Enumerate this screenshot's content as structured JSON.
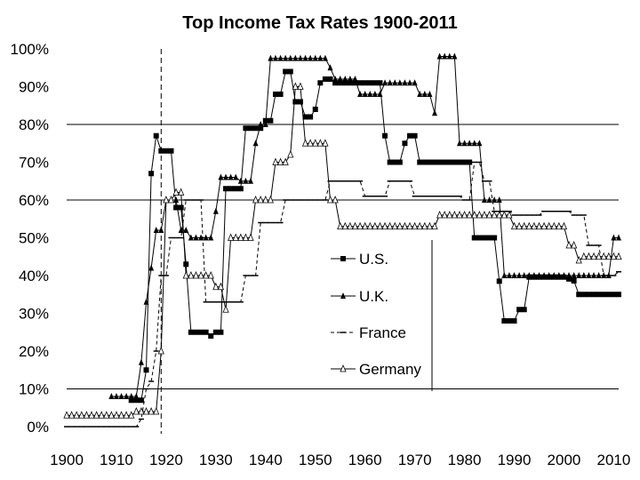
{
  "chart_data": {
    "type": "line",
    "title": "Top Income Tax Rates 1900-2011",
    "xlabel": "",
    "ylabel": "",
    "xlim": [
      1900,
      2011
    ],
    "ylim": [
      0,
      100
    ],
    "x_ticks": [
      "1900",
      "1910",
      "1920",
      "1930",
      "1940",
      "1950",
      "1960",
      "1970",
      "1980",
      "1990",
      "2000",
      "2010"
    ],
    "y_ticks": [
      "0%",
      "10%",
      "20%",
      "30%",
      "40%",
      "50%",
      "60%",
      "70%",
      "80%",
      "90%",
      "100%"
    ],
    "gridlines_y": [
      10,
      60,
      80
    ],
    "reference_line_x": 1919,
    "legend_position": "center",
    "series": [
      {
        "name": "U.S.",
        "marker": "square-filled",
        "points": [
          [
            1913,
            7
          ],
          [
            1916,
            15
          ],
          [
            1917,
            67
          ],
          [
            1918,
            77
          ],
          [
            1919,
            73
          ],
          [
            1921,
            73
          ],
          [
            1922,
            58
          ],
          [
            1924,
            43
          ],
          [
            1925,
            25
          ],
          [
            1929,
            24
          ],
          [
            1930,
            25
          ],
          [
            1932,
            63
          ],
          [
            1936,
            79
          ],
          [
            1940,
            81
          ],
          [
            1942,
            88
          ],
          [
            1944,
            94
          ],
          [
            1946,
            86
          ],
          [
            1948,
            82
          ],
          [
            1950,
            84
          ],
          [
            1951,
            91
          ],
          [
            1952,
            92
          ],
          [
            1954,
            91
          ],
          [
            1964,
            77
          ],
          [
            1965,
            70
          ],
          [
            1968,
            75
          ],
          [
            1969,
            77
          ],
          [
            1971,
            70
          ],
          [
            1982,
            50
          ],
          [
            1987,
            38.5
          ],
          [
            1988,
            28
          ],
          [
            1991,
            31
          ],
          [
            1993,
            39.6
          ],
          [
            2001,
            39.1
          ],
          [
            2002,
            38.6
          ],
          [
            2003,
            35
          ],
          [
            2011,
            35
          ]
        ],
        "step": true
      },
      {
        "name": "U.K.",
        "marker": "triangle-filled",
        "points": [
          [
            1909,
            8
          ],
          [
            1914,
            8
          ],
          [
            1915,
            17
          ],
          [
            1916,
            33
          ],
          [
            1917,
            42
          ],
          [
            1918,
            52
          ],
          [
            1920,
            60
          ],
          [
            1923,
            52
          ],
          [
            1925,
            50
          ],
          [
            1929,
            50
          ],
          [
            1930,
            57
          ],
          [
            1931,
            66
          ],
          [
            1935,
            65
          ],
          [
            1938,
            75
          ],
          [
            1939,
            80
          ],
          [
            1941,
            97.5
          ],
          [
            1952,
            97.5
          ],
          [
            1953,
            95
          ],
          [
            1954,
            92
          ],
          [
            1959,
            88
          ],
          [
            1964,
            91
          ],
          [
            1971,
            88
          ],
          [
            1974,
            83
          ],
          [
            1975,
            98
          ],
          [
            1979,
            75
          ],
          [
            1984,
            60
          ],
          [
            1988,
            40
          ],
          [
            2009,
            40
          ],
          [
            2010,
            50
          ],
          [
            2011,
            50
          ]
        ],
        "step": true
      },
      {
        "name": "France",
        "marker": "dash",
        "points": [
          [
            1900,
            0
          ],
          [
            1914,
            0
          ],
          [
            1915,
            2
          ],
          [
            1916,
            10
          ],
          [
            1917,
            12
          ],
          [
            1918,
            20
          ],
          [
            1919,
            40
          ],
          [
            1921,
            50
          ],
          [
            1924,
            60
          ],
          [
            1928,
            33
          ],
          [
            1936,
            40
          ],
          [
            1939,
            54
          ],
          [
            1944,
            60
          ],
          [
            1950,
            60
          ],
          [
            1953,
            65
          ],
          [
            1960,
            61
          ],
          [
            1965,
            65
          ],
          [
            1970,
            61
          ],
          [
            1980,
            60
          ],
          [
            1982,
            70
          ],
          [
            1984,
            65
          ],
          [
            1986,
            57
          ],
          [
            1990,
            56
          ],
          [
            1996,
            57
          ],
          [
            2000,
            57
          ],
          [
            2002,
            56
          ],
          [
            2005,
            48
          ],
          [
            2008,
            40
          ],
          [
            2011,
            41
          ]
        ],
        "step": true
      },
      {
        "name": "Germany",
        "marker": "triangle-open",
        "points": [
          [
            1900,
            3
          ],
          [
            1911,
            3
          ],
          [
            1914,
            4
          ],
          [
            1918,
            4
          ],
          [
            1919,
            20
          ],
          [
            1920,
            60
          ],
          [
            1922,
            62
          ],
          [
            1924,
            40
          ],
          [
            1927,
            40
          ],
          [
            1930,
            37
          ],
          [
            1932,
            31
          ],
          [
            1933,
            50
          ],
          [
            1936,
            50
          ],
          [
            1938,
            60
          ],
          [
            1942,
            70
          ],
          [
            1945,
            72
          ],
          [
            1946,
            90
          ],
          [
            1948,
            75
          ],
          [
            1953,
            60
          ],
          [
            1955,
            53
          ],
          [
            1974,
            53
          ],
          [
            1975,
            56
          ],
          [
            1989,
            56
          ],
          [
            1990,
            53
          ],
          [
            1999,
            53
          ],
          [
            2001,
            48
          ],
          [
            2003,
            44
          ],
          [
            2004,
            45
          ],
          [
            2011,
            45
          ]
        ],
        "step": true
      }
    ]
  }
}
